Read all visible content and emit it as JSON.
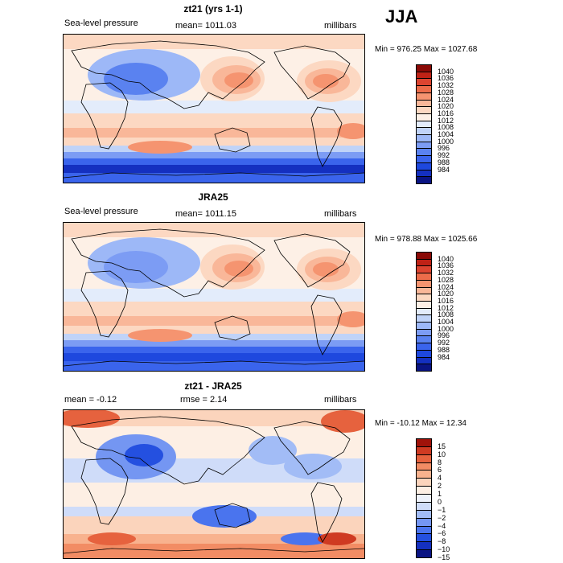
{
  "season": "JJA",
  "colors": {
    "slp": [
      "#0a1483",
      "#1430c0",
      "#1e48de",
      "#3a64ec",
      "#5a82f0",
      "#7c9cf4",
      "#9db8f7",
      "#c0d3f8",
      "#e3ecfb",
      "#fdf0e6",
      "#fcd8c2",
      "#f9b799",
      "#f59470",
      "#ec6c4a",
      "#dc4430",
      "#bf2216",
      "#8a0a06"
    ],
    "diff": [
      "#0a1483",
      "#1430c0",
      "#2450e0",
      "#4a74ee",
      "#7496f2",
      "#a2bcf6",
      "#cfdcf9",
      "#eef2fb",
      "#fdefe4",
      "#fbd4bc",
      "#f8b28e",
      "#f28c64",
      "#e6623e",
      "#cf3a22",
      "#a0120a"
    ]
  },
  "chart_data": [
    {
      "type": "heatmap",
      "title": "zt21 (yrs 1-1)",
      "subtitle_left": "Sea-level pressure",
      "subtitle_center": "mean= 1011.03",
      "units": "millibars",
      "minmax": "Min = 976.25  Max = 1027.68",
      "colorbar_levels": [
        "1040",
        "1036",
        "1032",
        "1028",
        "1024",
        "1020",
        "1016",
        "1012",
        "1008",
        "1004",
        "1000",
        "996",
        "992",
        "988",
        "984"
      ],
      "field": "sea-level pressure, June-July-August climatology"
    },
    {
      "type": "heatmap",
      "title": "JRA25",
      "subtitle_left": "Sea-level pressure",
      "subtitle_center": "mean= 1011.15",
      "units": "millibars",
      "minmax": "Min = 978.88  Max = 1025.66",
      "colorbar_levels": [
        "1040",
        "1036",
        "1032",
        "1028",
        "1024",
        "1020",
        "1016",
        "1012",
        "1008",
        "1004",
        "1000",
        "996",
        "992",
        "988",
        "984"
      ],
      "field": "sea-level pressure, June-July-August climatology"
    },
    {
      "type": "heatmap",
      "title": "zt21 - JRA25",
      "subtitle_left": "mean =   -0.12",
      "subtitle_center": "rmse =    2.14",
      "units": "millibars",
      "minmax": "Min = -10.12  Max =   12.34",
      "colorbar_levels": [
        "15",
        "10",
        "8",
        "6",
        "4",
        "2",
        "1",
        "0",
        "−1",
        "−2",
        "−4",
        "−6",
        "−8",
        "−10",
        "−15"
      ],
      "field": "difference of sea-level pressure"
    }
  ]
}
